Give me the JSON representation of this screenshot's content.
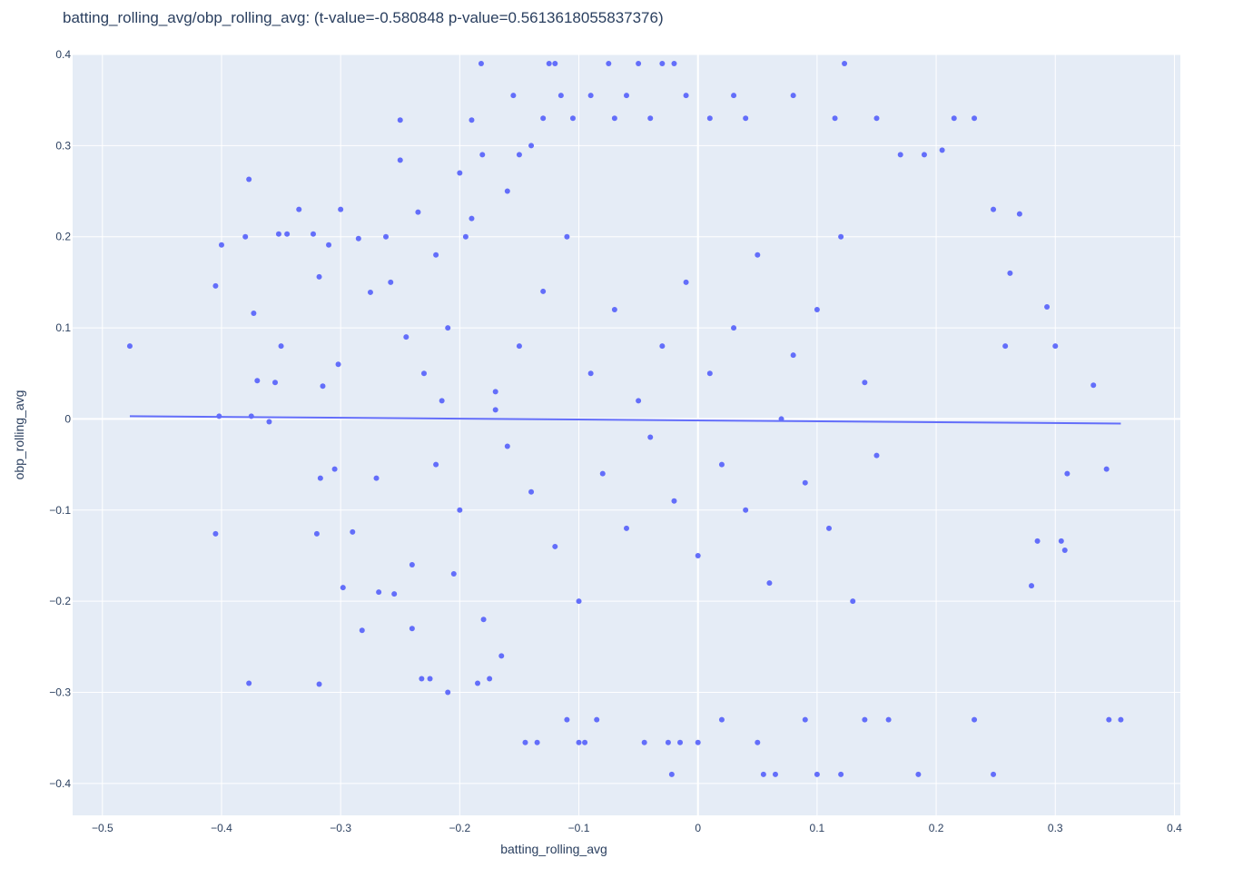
{
  "chart_data": {
    "type": "scatter",
    "title": "batting_rolling_avg/obp_rolling_avg: (t-value=-0.580848 p-value=0.5613618055837376)",
    "xlabel": "batting_rolling_avg",
    "ylabel": "obp_rolling_avg",
    "xlim": [
      -0.525,
      0.405
    ],
    "ylim": [
      -0.435,
      0.4
    ],
    "x_ticks": [
      -0.5,
      -0.4,
      -0.3,
      -0.2,
      -0.1,
      0,
      0.1,
      0.2,
      0.3,
      0.4
    ],
    "y_ticks": [
      -0.4,
      -0.3,
      -0.2,
      -0.1,
      0,
      0.1,
      0.2,
      0.3,
      0.4
    ],
    "x_tick_labels": [
      "−0.5",
      "−0.4",
      "−0.3",
      "−0.2",
      "−0.1",
      "0",
      "0.1",
      "0.2",
      "0.3",
      "0.4"
    ],
    "y_tick_labels": [
      "−0.4",
      "−0.3",
      "−0.2",
      "−0.1",
      "0",
      "0.1",
      "0.2",
      "0.3",
      "0.4"
    ],
    "grid": true,
    "colors": {
      "points": "#636efa",
      "plot_bg": "#e5ecf6",
      "grid": "#ffffff",
      "text": "#2a3f5f"
    },
    "series": [
      {
        "mode": "markers",
        "points": [
          [
            -0.477,
            0.08
          ],
          [
            -0.405,
            -0.126
          ],
          [
            -0.405,
            0.146
          ],
          [
            -0.402,
            0.003
          ],
          [
            -0.4,
            0.191
          ],
          [
            -0.38,
            0.2
          ],
          [
            -0.377,
            0.263
          ],
          [
            -0.375,
            0.003
          ],
          [
            -0.373,
            0.116
          ],
          [
            -0.37,
            0.042
          ],
          [
            -0.377,
            -0.29
          ],
          [
            -0.35,
            0.08
          ],
          [
            -0.345,
            0.203
          ],
          [
            -0.352,
            0.203
          ],
          [
            -0.355,
            0.04
          ],
          [
            -0.36,
            -0.003
          ],
          [
            -0.335,
            0.23
          ],
          [
            -0.323,
            0.203
          ],
          [
            -0.32,
            -0.126
          ],
          [
            -0.318,
            -0.291
          ],
          [
            -0.318,
            0.156
          ],
          [
            -0.315,
            0.036
          ],
          [
            -0.317,
            -0.065
          ],
          [
            -0.31,
            0.191
          ],
          [
            -0.305,
            -0.055
          ],
          [
            -0.302,
            0.06
          ],
          [
            -0.3,
            0.23
          ],
          [
            -0.298,
            -0.185
          ],
          [
            -0.29,
            -0.124
          ],
          [
            -0.285,
            0.198
          ],
          [
            -0.282,
            -0.232
          ],
          [
            -0.275,
            0.139
          ],
          [
            -0.27,
            -0.065
          ],
          [
            -0.268,
            -0.19
          ],
          [
            -0.262,
            0.2
          ],
          [
            -0.258,
            0.15
          ],
          [
            -0.255,
            -0.192
          ],
          [
            -0.25,
            0.284
          ],
          [
            -0.25,
            0.328
          ],
          [
            -0.245,
            0.09
          ],
          [
            -0.24,
            -0.23
          ],
          [
            -0.235,
            0.227
          ],
          [
            -0.232,
            -0.285
          ],
          [
            -0.225,
            -0.285
          ],
          [
            -0.22,
            0.18
          ],
          [
            -0.215,
            0.02
          ],
          [
            -0.21,
            -0.3
          ],
          [
            -0.205,
            -0.17
          ],
          [
            -0.2,
            0.27
          ],
          [
            -0.195,
            0.2
          ],
          [
            -0.19,
            0.328
          ],
          [
            -0.185,
            -0.29
          ],
          [
            -0.182,
            0.39
          ],
          [
            -0.181,
            0.29
          ],
          [
            -0.175,
            -0.285
          ],
          [
            -0.17,
            0.01
          ],
          [
            -0.165,
            -0.26
          ],
          [
            -0.16,
            0.25
          ],
          [
            -0.155,
            0.355
          ],
          [
            -0.15,
            0.29
          ],
          [
            -0.145,
            -0.355
          ],
          [
            -0.14,
            0.3
          ],
          [
            -0.135,
            -0.355
          ],
          [
            -0.13,
            0.33
          ],
          [
            -0.125,
            0.39
          ],
          [
            -0.12,
            0.39
          ],
          [
            -0.115,
            0.355
          ],
          [
            -0.11,
            -0.33
          ],
          [
            -0.105,
            0.33
          ],
          [
            -0.1,
            -0.355
          ],
          [
            -0.095,
            -0.355
          ],
          [
            -0.09,
            0.355
          ],
          [
            -0.085,
            -0.33
          ],
          [
            -0.075,
            0.39
          ],
          [
            -0.07,
            0.33
          ],
          [
            -0.06,
            0.355
          ],
          [
            -0.05,
            0.39
          ],
          [
            -0.045,
            -0.355
          ],
          [
            -0.04,
            0.33
          ],
          [
            -0.03,
            0.39
          ],
          [
            -0.025,
            -0.355
          ],
          [
            -0.02,
            0.39
          ],
          [
            -0.015,
            -0.355
          ],
          [
            -0.01,
            0.355
          ],
          [
            0.0,
            -0.355
          ],
          [
            -0.022,
            -0.39
          ],
          [
            0.01,
            0.33
          ],
          [
            0.02,
            -0.33
          ],
          [
            0.03,
            0.355
          ],
          [
            0.04,
            0.33
          ],
          [
            0.05,
            -0.355
          ],
          [
            0.055,
            -0.39
          ],
          [
            0.065,
            -0.39
          ],
          [
            0.08,
            0.355
          ],
          [
            0.09,
            -0.33
          ],
          [
            0.1,
            -0.39
          ],
          [
            0.115,
            0.33
          ],
          [
            0.12,
            -0.39
          ],
          [
            0.123,
            0.39
          ],
          [
            0.14,
            -0.33
          ],
          [
            0.15,
            0.33
          ],
          [
            0.16,
            -0.33
          ],
          [
            0.17,
            0.29
          ],
          [
            0.185,
            -0.39
          ],
          [
            0.19,
            0.29
          ],
          [
            0.205,
            0.295
          ],
          [
            0.215,
            0.33
          ],
          [
            0.232,
            0.33
          ],
          [
            0.232,
            -0.33
          ],
          [
            0.248,
            -0.39
          ],
          [
            0.262,
            0.16
          ],
          [
            0.28,
            -0.183
          ],
          [
            0.285,
            -0.134
          ],
          [
            0.293,
            0.123
          ],
          [
            0.3,
            0.08
          ],
          [
            0.305,
            -0.134
          ],
          [
            0.308,
            -0.144
          ],
          [
            0.31,
            -0.06
          ],
          [
            0.332,
            0.037
          ],
          [
            0.343,
            -0.055
          ],
          [
            0.345,
            -0.33
          ],
          [
            0.355,
            -0.33
          ],
          [
            0.248,
            0.23
          ],
          [
            0.258,
            0.08
          ],
          [
            0.27,
            0.225
          ],
          [
            -0.09,
            0.05
          ],
          [
            -0.08,
            -0.06
          ],
          [
            -0.07,
            0.12
          ],
          [
            -0.06,
            -0.12
          ],
          [
            -0.05,
            0.02
          ],
          [
            -0.04,
            -0.02
          ],
          [
            -0.03,
            0.08
          ],
          [
            -0.02,
            -0.09
          ],
          [
            -0.01,
            0.15
          ],
          [
            0.0,
            -0.15
          ],
          [
            0.01,
            0.05
          ],
          [
            0.02,
            -0.05
          ],
          [
            0.03,
            0.1
          ],
          [
            0.04,
            -0.1
          ],
          [
            0.05,
            0.18
          ],
          [
            0.06,
            -0.18
          ],
          [
            0.07,
            0.0
          ],
          [
            0.08,
            0.07
          ],
          [
            0.09,
            -0.07
          ],
          [
            0.1,
            0.12
          ],
          [
            0.11,
            -0.12
          ],
          [
            0.12,
            0.2
          ],
          [
            0.13,
            -0.2
          ],
          [
            0.14,
            0.04
          ],
          [
            0.15,
            -0.04
          ],
          [
            -0.1,
            -0.2
          ],
          [
            -0.11,
            0.2
          ],
          [
            -0.12,
            -0.14
          ],
          [
            -0.13,
            0.14
          ],
          [
            -0.14,
            -0.08
          ],
          [
            -0.15,
            0.08
          ],
          [
            -0.16,
            -0.03
          ],
          [
            -0.17,
            0.03
          ],
          [
            -0.18,
            -0.22
          ],
          [
            -0.19,
            0.22
          ],
          [
            -0.2,
            -0.1
          ],
          [
            -0.21,
            0.1
          ],
          [
            -0.22,
            -0.05
          ],
          [
            -0.23,
            0.05
          ],
          [
            -0.24,
            -0.16
          ]
        ]
      },
      {
        "mode": "lines",
        "name": "trend",
        "x": [
          -0.477,
          0.355
        ],
        "y": [
          0.003,
          -0.005
        ]
      }
    ]
  }
}
